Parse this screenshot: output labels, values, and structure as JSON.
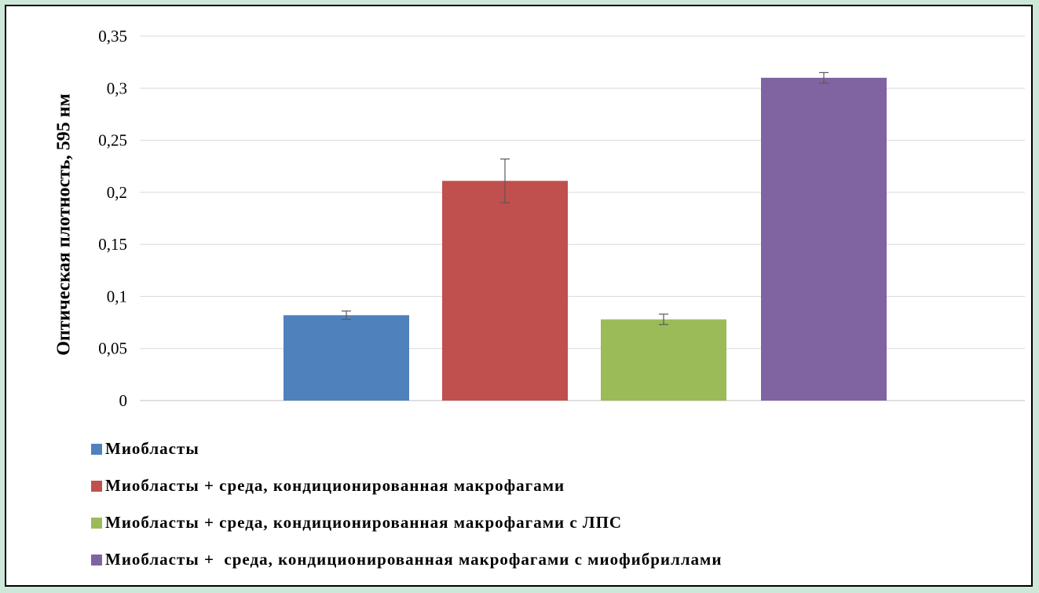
{
  "chart_data": {
    "type": "bar",
    "title": "",
    "ylabel": "Оптическая плотность, 595 нм",
    "xlabel": "",
    "ylim": [
      0,
      0.35
    ],
    "yticks": [
      {
        "value": 0,
        "label": "0"
      },
      {
        "value": 0.05,
        "label": "0,05"
      },
      {
        "value": 0.1,
        "label": "0,1"
      },
      {
        "value": 0.15,
        "label": "0,15"
      },
      {
        "value": 0.2,
        "label": "0,2"
      },
      {
        "value": 0.25,
        "label": "0,25"
      },
      {
        "value": 0.3,
        "label": "0,3"
      },
      {
        "value": 0.35,
        "label": "0,35"
      }
    ],
    "grid": true,
    "legend_position": "bottom",
    "series": [
      {
        "name": "Миобласты",
        "value": 0.082,
        "error": 0.004,
        "color": "#4f81bd"
      },
      {
        "name": "Миобласты + среда, кондиционированная макрофагами",
        "value": 0.211,
        "error": 0.021,
        "color": "#c0504d"
      },
      {
        "name": "Миобласты + среда, кондиционированная макрофагами с ЛПС",
        "value": 0.078,
        "error": 0.005,
        "color": "#9bbb59"
      },
      {
        "name": "Миобласты +  среда, кондиционированная макрофагами с миофибриллами",
        "value": 0.31,
        "error": 0.005,
        "color": "#8064a2"
      }
    ]
  }
}
